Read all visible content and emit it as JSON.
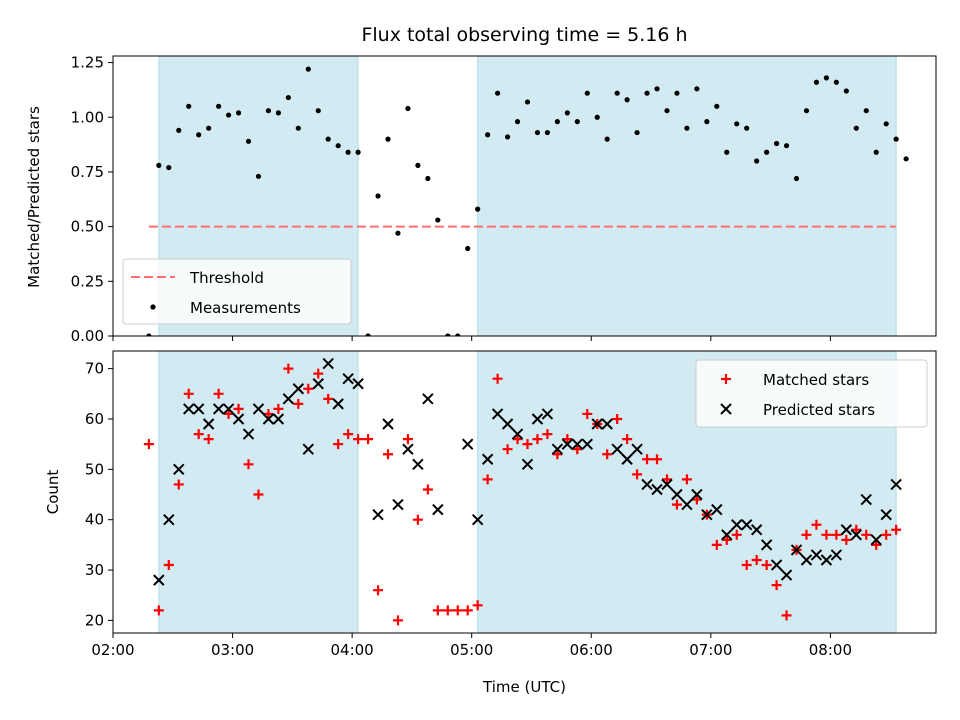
{
  "chart_data": [
    {
      "type": "scatter",
      "panel": "top",
      "title": "Flux total observing time = 5.16 h",
      "xlabel": "",
      "ylabel": "Matched/Predicted stars",
      "xlim": [
        "02:00",
        "08:53"
      ],
      "ylim": [
        0,
        1.28
      ],
      "yticks": [
        "0.00",
        "0.25",
        "0.50",
        "0.75",
        "1.00",
        "1.25"
      ],
      "shaded_intervals": [
        [
          "02:23",
          "04:03"
        ],
        [
          "05:03",
          "08:33"
        ]
      ],
      "threshold": {
        "name": "Threshold",
        "value": 0.5,
        "x_range": [
          "02:18",
          "08:33"
        ],
        "color": "#ff6f6f"
      },
      "legend": {
        "position": "lower-left",
        "entries": [
          "Threshold",
          "Measurements"
        ]
      },
      "series": [
        {
          "name": "Measurements",
          "color": "#000000",
          "points": [
            [
              "02:18",
              0.0
            ],
            [
              "02:23",
              0.78
            ],
            [
              "02:28",
              0.77
            ],
            [
              "02:33",
              0.94
            ],
            [
              "02:38",
              1.05
            ],
            [
              "02:43",
              0.92
            ],
            [
              "02:48",
              0.95
            ],
            [
              "02:53",
              1.05
            ],
            [
              "02:58",
              1.01
            ],
            [
              "03:03",
              1.02
            ],
            [
              "03:08",
              0.89
            ],
            [
              "03:13",
              0.73
            ],
            [
              "03:18",
              1.03
            ],
            [
              "03:23",
              1.02
            ],
            [
              "03:28",
              1.09
            ],
            [
              "03:33",
              0.95
            ],
            [
              "03:38",
              1.22
            ],
            [
              "03:43",
              1.03
            ],
            [
              "03:48",
              0.9
            ],
            [
              "03:53",
              0.87
            ],
            [
              "03:58",
              0.84
            ],
            [
              "04:03",
              0.84
            ],
            [
              "04:08",
              0.0
            ],
            [
              "04:13",
              0.64
            ],
            [
              "04:18",
              0.9
            ],
            [
              "04:23",
              0.47
            ],
            [
              "04:28",
              1.04
            ],
            [
              "04:33",
              0.78
            ],
            [
              "04:38",
              0.72
            ],
            [
              "04:43",
              0.53
            ],
            [
              "04:48",
              0.0
            ],
            [
              "04:53",
              0.0
            ],
            [
              "04:58",
              0.4
            ],
            [
              "05:03",
              0.58
            ],
            [
              "05:08",
              0.92
            ],
            [
              "05:13",
              1.11
            ],
            [
              "05:18",
              0.91
            ],
            [
              "05:23",
              0.98
            ],
            [
              "05:28",
              1.07
            ],
            [
              "05:33",
              0.93
            ],
            [
              "05:38",
              0.93
            ],
            [
              "05:43",
              0.98
            ],
            [
              "05:48",
              1.02
            ],
            [
              "05:53",
              0.98
            ],
            [
              "05:58",
              1.11
            ],
            [
              "06:03",
              1.0
            ],
            [
              "06:08",
              0.9
            ],
            [
              "06:13",
              1.11
            ],
            [
              "06:18",
              1.08
            ],
            [
              "06:23",
              0.93
            ],
            [
              "06:28",
              1.11
            ],
            [
              "06:33",
              1.13
            ],
            [
              "06:38",
              1.03
            ],
            [
              "06:43",
              1.11
            ],
            [
              "06:48",
              0.95
            ],
            [
              "06:53",
              1.13
            ],
            [
              "06:58",
              0.98
            ],
            [
              "07:03",
              1.05
            ],
            [
              "07:08",
              0.84
            ],
            [
              "07:13",
              0.97
            ],
            [
              "07:18",
              0.95
            ],
            [
              "07:23",
              0.8
            ],
            [
              "07:28",
              0.84
            ],
            [
              "07:33",
              0.88
            ],
            [
              "07:38",
              0.87
            ],
            [
              "07:43",
              0.72
            ],
            [
              "07:48",
              1.03
            ],
            [
              "07:53",
              1.16
            ],
            [
              "07:58",
              1.18
            ],
            [
              "08:03",
              1.16
            ],
            [
              "08:08",
              1.12
            ],
            [
              "08:13",
              0.95
            ],
            [
              "08:18",
              1.03
            ],
            [
              "08:23",
              0.84
            ],
            [
              "08:28",
              0.97
            ],
            [
              "08:33",
              0.9
            ],
            [
              "08:38",
              0.81
            ]
          ]
        }
      ]
    },
    {
      "type": "scatter",
      "panel": "bottom",
      "title": "",
      "xlabel": "Time (UTC)",
      "ylabel": "Count",
      "xlim": [
        "02:00",
        "08:53"
      ],
      "ylim": [
        17.5,
        73.5
      ],
      "xticks": [
        "02:00",
        "03:00",
        "04:00",
        "05:00",
        "06:00",
        "07:00",
        "08:00"
      ],
      "yticks": [
        "20",
        "30",
        "40",
        "50",
        "60",
        "70"
      ],
      "shaded_intervals": [
        [
          "02:23",
          "04:03"
        ],
        [
          "05:03",
          "08:33"
        ]
      ],
      "legend": {
        "position": "upper-right",
        "entries": [
          "Matched stars",
          "Predicted stars"
        ]
      },
      "series": [
        {
          "name": "Matched stars",
          "marker": "plus",
          "color": "#ff0000",
          "points": [
            [
              "02:18",
              55
            ],
            [
              "02:23",
              22
            ],
            [
              "02:28",
              31
            ],
            [
              "02:33",
              47
            ],
            [
              "02:38",
              65
            ],
            [
              "02:43",
              57
            ],
            [
              "02:48",
              56
            ],
            [
              "02:53",
              65
            ],
            [
              "02:58",
              61
            ],
            [
              "03:03",
              62
            ],
            [
              "03:08",
              51
            ],
            [
              "03:13",
              45
            ],
            [
              "03:18",
              61
            ],
            [
              "03:23",
              62
            ],
            [
              "03:28",
              70
            ],
            [
              "03:33",
              63
            ],
            [
              "03:38",
              66
            ],
            [
              "03:43",
              69
            ],
            [
              "03:48",
              64
            ],
            [
              "03:53",
              55
            ],
            [
              "03:58",
              57
            ],
            [
              "04:03",
              56
            ],
            [
              "04:08",
              56
            ],
            [
              "04:13",
              26
            ],
            [
              "04:18",
              53
            ],
            [
              "04:23",
              20
            ],
            [
              "04:28",
              56
            ],
            [
              "04:33",
              40
            ],
            [
              "04:38",
              46
            ],
            [
              "04:43",
              22
            ],
            [
              "04:48",
              22
            ],
            [
              "04:53",
              22
            ],
            [
              "04:58",
              22
            ],
            [
              "05:03",
              23
            ],
            [
              "05:08",
              48
            ],
            [
              "05:13",
              68
            ],
            [
              "05:18",
              54
            ],
            [
              "05:23",
              56
            ],
            [
              "05:28",
              55
            ],
            [
              "05:33",
              56
            ],
            [
              "05:38",
              57
            ],
            [
              "05:43",
              53
            ],
            [
              "05:48",
              56
            ],
            [
              "05:53",
              54
            ],
            [
              "05:58",
              61
            ],
            [
              "06:03",
              59
            ],
            [
              "06:08",
              53
            ],
            [
              "06:13",
              60
            ],
            [
              "06:18",
              56
            ],
            [
              "06:23",
              49
            ],
            [
              "06:28",
              52
            ],
            [
              "06:33",
              52
            ],
            [
              "06:38",
              48
            ],
            [
              "06:43",
              43
            ],
            [
              "06:48",
              48
            ],
            [
              "06:53",
              44
            ],
            [
              "06:58",
              41
            ],
            [
              "07:03",
              35
            ],
            [
              "07:08",
              36
            ],
            [
              "07:13",
              37
            ],
            [
              "07:18",
              31
            ],
            [
              "07:23",
              32
            ],
            [
              "07:28",
              31
            ],
            [
              "07:33",
              27
            ],
            [
              "07:38",
              21
            ],
            [
              "07:43",
              34
            ],
            [
              "07:48",
              37
            ],
            [
              "07:53",
              39
            ],
            [
              "07:58",
              37
            ],
            [
              "08:03",
              37
            ],
            [
              "08:08",
              36
            ],
            [
              "08:13",
              38
            ],
            [
              "08:18",
              37
            ],
            [
              "08:23",
              35
            ],
            [
              "08:28",
              37
            ],
            [
              "08:33",
              38
            ]
          ]
        },
        {
          "name": "Predicted stars",
          "marker": "x",
          "color": "#000000",
          "points": [
            [
              "02:23",
              28
            ],
            [
              "02:28",
              40
            ],
            [
              "02:33",
              50
            ],
            [
              "02:38",
              62
            ],
            [
              "02:43",
              62
            ],
            [
              "02:48",
              59
            ],
            [
              "02:53",
              62
            ],
            [
              "02:58",
              62
            ],
            [
              "03:03",
              60
            ],
            [
              "03:08",
              57
            ],
            [
              "03:13",
              62
            ],
            [
              "03:18",
              60
            ],
            [
              "03:23",
              60
            ],
            [
              "03:28",
              64
            ],
            [
              "03:33",
              66
            ],
            [
              "03:38",
              54
            ],
            [
              "03:43",
              67
            ],
            [
              "03:48",
              71
            ],
            [
              "03:53",
              63
            ],
            [
              "03:58",
              68
            ],
            [
              "04:03",
              67
            ],
            [
              "04:13",
              41
            ],
            [
              "04:18",
              59
            ],
            [
              "04:23",
              43
            ],
            [
              "04:28",
              54
            ],
            [
              "04:33",
              51
            ],
            [
              "04:38",
              64
            ],
            [
              "04:43",
              42
            ],
            [
              "04:58",
              55
            ],
            [
              "05:03",
              40
            ],
            [
              "05:08",
              52
            ],
            [
              "05:13",
              61
            ],
            [
              "05:18",
              59
            ],
            [
              "05:23",
              57
            ],
            [
              "05:28",
              51
            ],
            [
              "05:33",
              60
            ],
            [
              "05:38",
              61
            ],
            [
              "05:43",
              54
            ],
            [
              "05:48",
              55
            ],
            [
              "05:53",
              55
            ],
            [
              "05:58",
              55
            ],
            [
              "06:03",
              59
            ],
            [
              "06:08",
              59
            ],
            [
              "06:13",
              54
            ],
            [
              "06:18",
              52
            ],
            [
              "06:23",
              54
            ],
            [
              "06:28",
              47
            ],
            [
              "06:33",
              46
            ],
            [
              "06:38",
              47
            ],
            [
              "06:43",
              45
            ],
            [
              "06:48",
              43
            ],
            [
              "06:53",
              45
            ],
            [
              "06:58",
              41
            ],
            [
              "07:03",
              42
            ],
            [
              "07:08",
              37
            ],
            [
              "07:13",
              39
            ],
            [
              "07:18",
              39
            ],
            [
              "07:23",
              38
            ],
            [
              "07:28",
              35
            ],
            [
              "07:33",
              31
            ],
            [
              "07:38",
              29
            ],
            [
              "07:43",
              34
            ],
            [
              "07:48",
              32
            ],
            [
              "07:53",
              33
            ],
            [
              "07:58",
              32
            ],
            [
              "08:03",
              33
            ],
            [
              "08:08",
              38
            ],
            [
              "08:13",
              37
            ],
            [
              "08:18",
              44
            ],
            [
              "08:23",
              36
            ],
            [
              "08:28",
              41
            ],
            [
              "08:33",
              47
            ]
          ]
        }
      ]
    }
  ],
  "colors": {
    "shade": "#add8e6",
    "threshold": "#ff6f6f",
    "matched": "#ff0000",
    "predicted": "#000000"
  }
}
